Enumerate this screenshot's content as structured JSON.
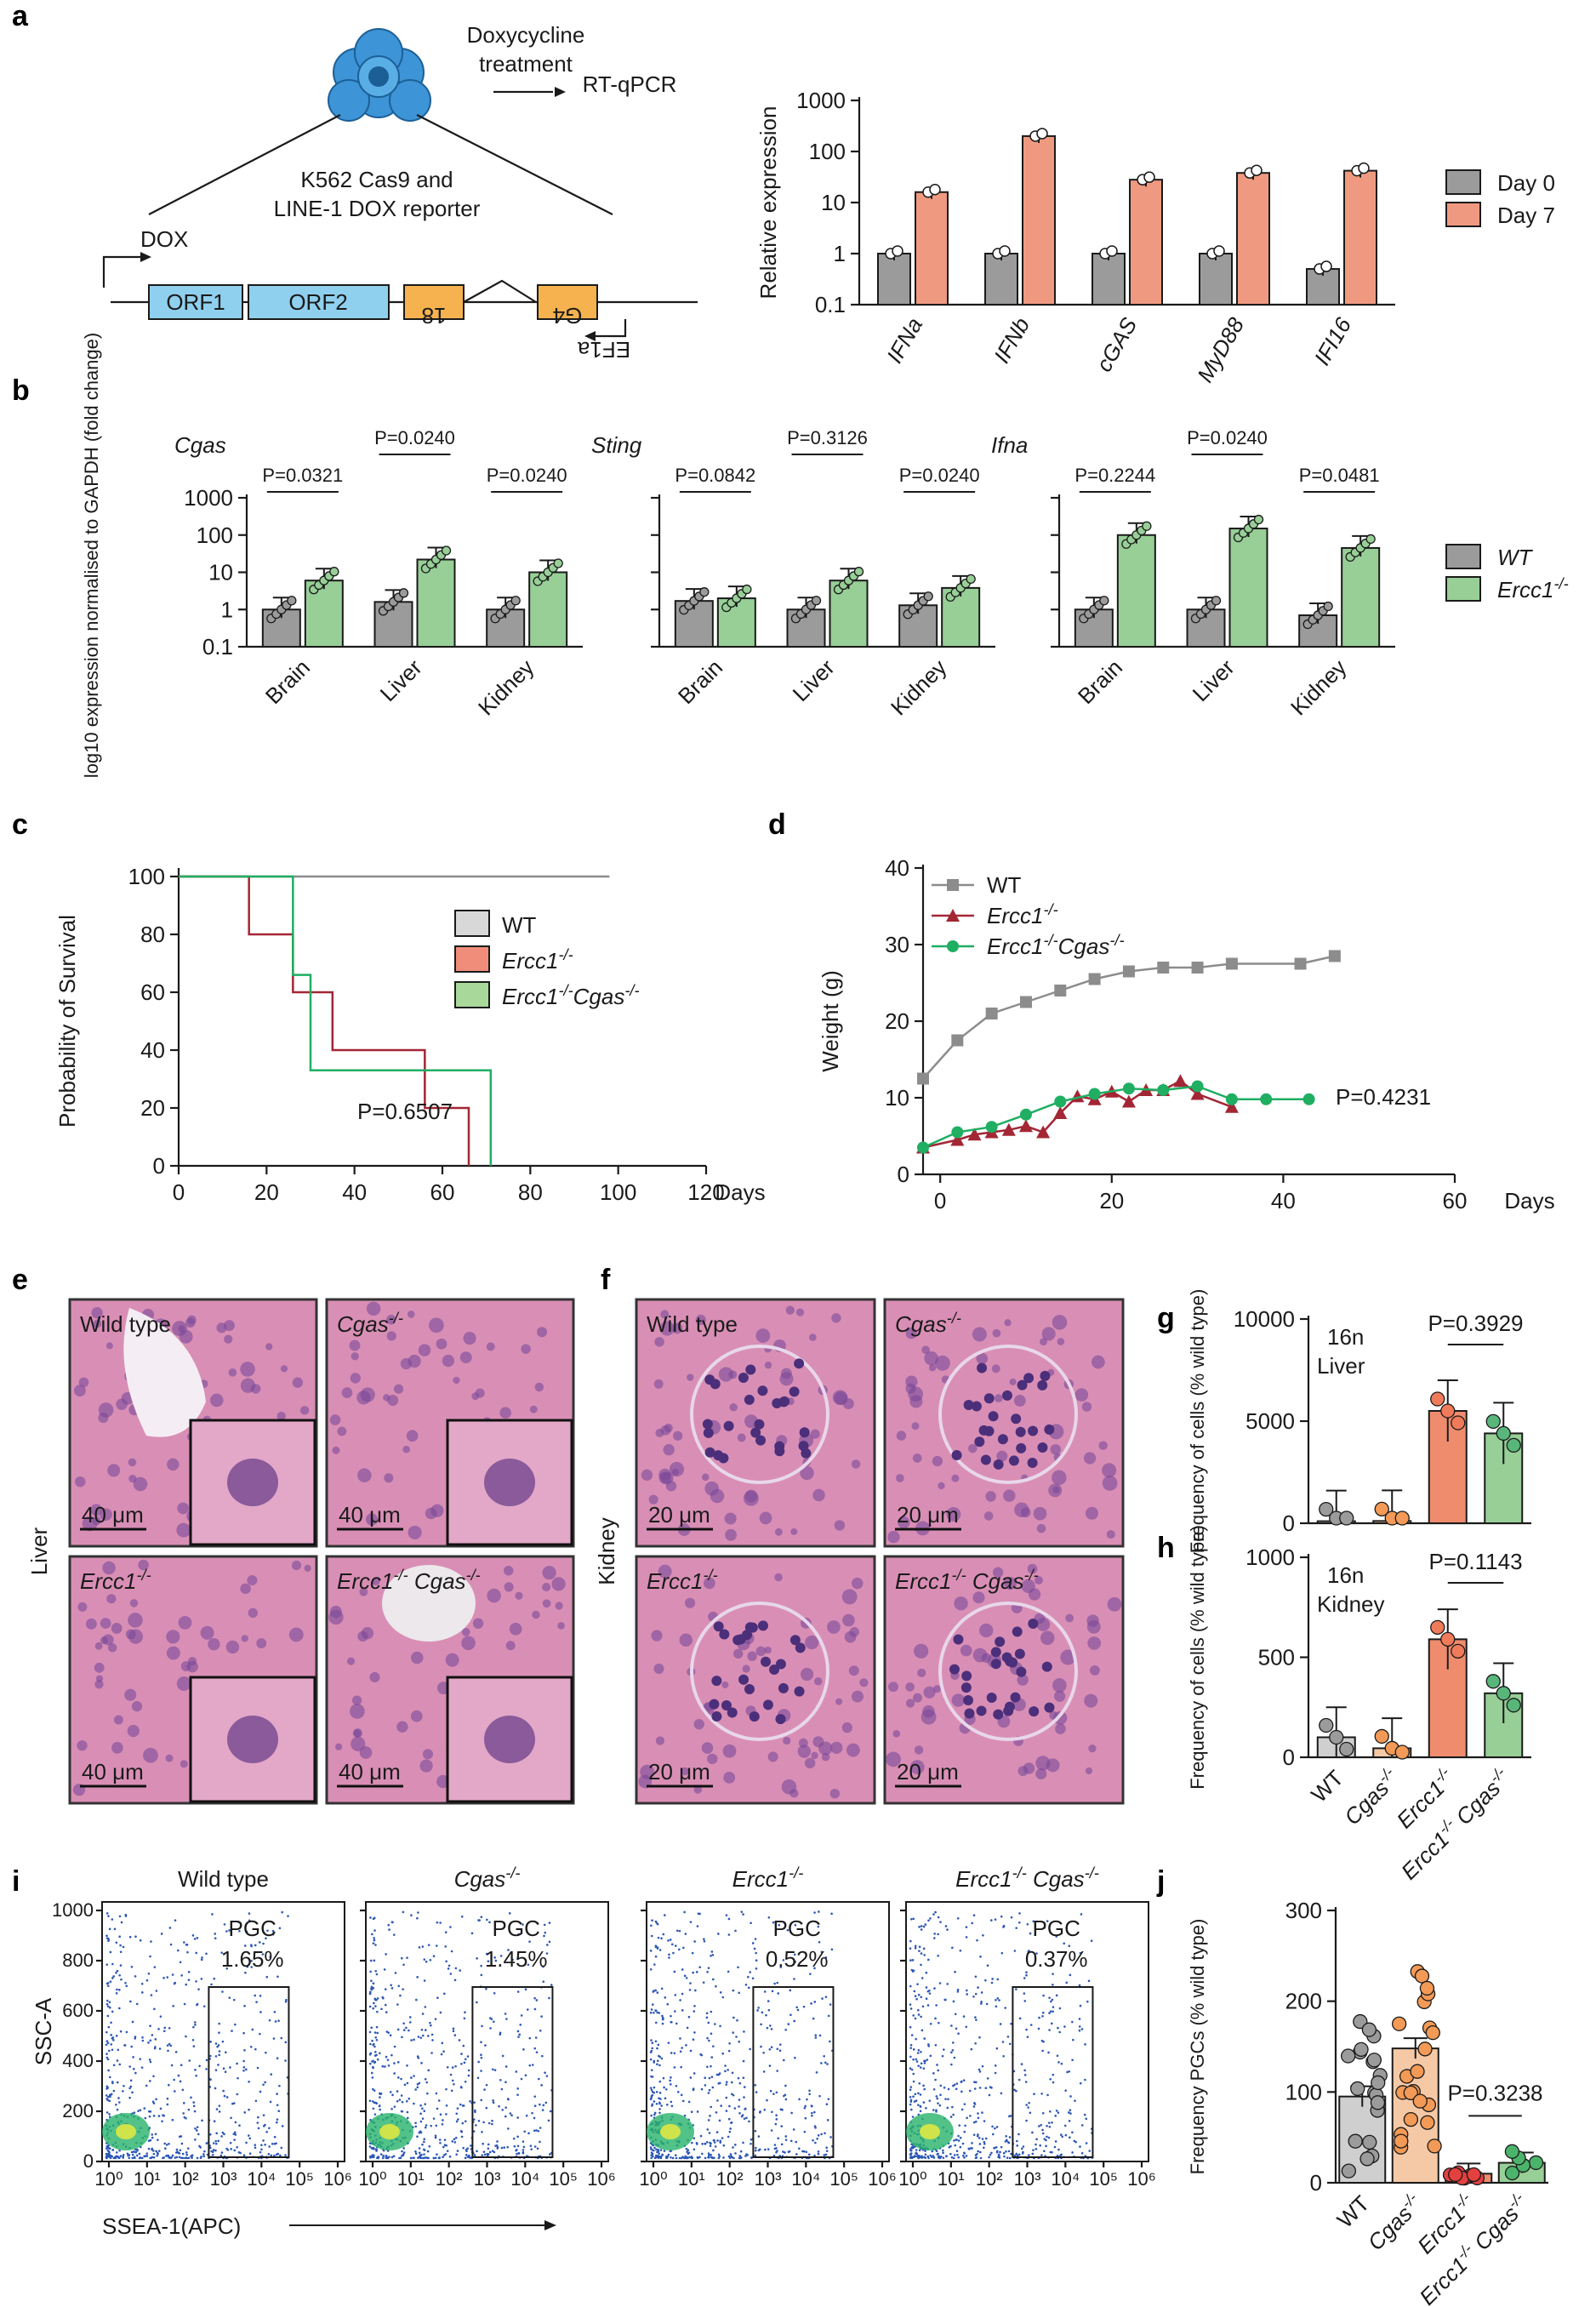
{
  "panel_letters": [
    "a",
    "b",
    "c",
    "d",
    "e",
    "f",
    "g",
    "h",
    "i",
    "j"
  ],
  "panel_a": {
    "diagram": {
      "cell_line": "K562 Cas9 and",
      "cell_line_2": "LINE-1 DOX reporter",
      "treatment_1": "Doxycycline",
      "treatment_2": "treatment",
      "readout": "RT-qPCR",
      "dox": "DOX",
      "orf1": "ORF1",
      "orf2": "ORF2",
      "box_left": "18",
      "box_right": "G4",
      "promoter": "EF1a"
    }
  },
  "panel_e": {
    "row_label": "Liver",
    "tiles": [
      {
        "title": "Wild type",
        "scale": "40 μm"
      },
      {
        "title": "Cgas-/-",
        "scale": "40 μm"
      },
      {
        "title": "Ercc1-/-",
        "scale": "40 μm"
      },
      {
        "title": "Ercc1-/- Cgas-/-",
        "scale": "40 μm"
      }
    ]
  },
  "panel_f": {
    "row_label": "Kidney",
    "tiles": [
      {
        "title": "Wild type",
        "scale": "20 μm"
      },
      {
        "title": "Cgas-/-",
        "scale": "20 μm"
      },
      {
        "title": "Ercc1-/-",
        "scale": "20 μm"
      },
      {
        "title": "Ercc1-/- Cgas-/-",
        "scale": "20 μm"
      }
    ]
  },
  "panel_i": {
    "ylabel": "SSC-A",
    "xlabel": "SSEA-1(APC)",
    "gate_label": "PGC",
    "y_ticks": [
      "0",
      "200",
      "400",
      "600",
      "800",
      "1000"
    ],
    "x_ticks": [
      "10⁰",
      "10¹",
      "10²",
      "10³",
      "10⁴",
      "10⁵",
      "10⁶"
    ],
    "plots": [
      {
        "title": "Wild type",
        "pct": "1.65%"
      },
      {
        "title": "Cgas-/-",
        "pct": "1.45%"
      },
      {
        "title": "Ercc1-/-",
        "pct": "0.52%"
      },
      {
        "title": "Ercc1-/- Cgas-/-",
        "pct": "0.37%"
      }
    ]
  },
  "colors": {
    "grey": "#9b9b9b",
    "salmon": "#ef9a80",
    "green": "#97cf97",
    "red_line": "#a32634",
    "green_line": "#1fae62",
    "grey_line": "#8c8c8c",
    "orange": "#f29a56",
    "red_dot": "#e34040",
    "cell_blue": "#3d94d6",
    "orf_blue": "#8fd0ee",
    "orange_box": "#f5b24e",
    "tissue": "#d98fb5"
  },
  "chart_data": [
    {
      "id": "a",
      "type": "bar",
      "yscale": "log",
      "ylabel": "Relative expression",
      "y_ticks": [
        "0.1",
        "1",
        "10",
        "100",
        "1000"
      ],
      "categories": [
        "IFNa",
        "IFNb",
        "cGAS",
        "MyD88",
        "IFI16"
      ],
      "series": [
        {
          "name": "Day 0",
          "values": [
            1,
            1,
            1,
            1,
            0.5
          ]
        },
        {
          "name": "Day 7",
          "values": [
            16,
            200,
            28,
            38,
            42
          ]
        }
      ]
    },
    {
      "id": "b",
      "type": "bar",
      "yscale": "log",
      "ylabel": "log10 expression normalised to GAPDH (fold change)",
      "y_ticks": [
        "0.1",
        "1",
        "10",
        "100",
        "1000"
      ],
      "legend": [
        "WT",
        "Ercc1-/-"
      ],
      "subplots": [
        {
          "gene": "Cgas",
          "categories": [
            "Brain",
            "Liver",
            "Kidney"
          ],
          "WT": [
            1.0,
            1.6,
            1.0
          ],
          "Ercc1": [
            6.0,
            22,
            10
          ],
          "p_values": [
            "P=0.0321",
            "P=0.0240",
            "P=0.0240"
          ]
        },
        {
          "gene": "Sting",
          "categories": [
            "Brain",
            "Liver",
            "Kidney"
          ],
          "WT": [
            1.7,
            1.0,
            1.3
          ],
          "Ercc1": [
            2.0,
            6.0,
            3.8
          ],
          "p_values": [
            "P=0.0842",
            "P=0.3126",
            "P=0.0240"
          ]
        },
        {
          "gene": "Ifna",
          "categories": [
            "Brain",
            "Liver",
            "Kidney"
          ],
          "WT": [
            1.0,
            1.0,
            0.7
          ],
          "Ercc1": [
            100,
            150,
            45
          ],
          "p_values": [
            "P=0.2244",
            "P=0.0240",
            "P=0.0481"
          ]
        }
      ]
    },
    {
      "id": "c",
      "type": "line",
      "subtype": "kaplan-meier",
      "ylabel": "Probability of Survival",
      "xlabel": "Days",
      "x_ticks": [
        "0",
        "20",
        "40",
        "60",
        "80",
        "100",
        "120"
      ],
      "y_ticks": [
        "0",
        "20",
        "40",
        "60",
        "80",
        "100"
      ],
      "xlim": [
        0,
        120
      ],
      "ylim": [
        0,
        100
      ],
      "annotation": "P=0.6507",
      "series": [
        {
          "name": "WT",
          "points": [
            [
              0,
              100
            ],
            [
              98,
              100
            ]
          ]
        },
        {
          "name": "Ercc1-/-",
          "points": [
            [
              0,
              100
            ],
            [
              16,
              100
            ],
            [
              16,
              80
            ],
            [
              26,
              80
            ],
            [
              26,
              60
            ],
            [
              31,
              60
            ],
            [
              31,
              60
            ],
            [
              35,
              60
            ],
            [
              35,
              40
            ],
            [
              56,
              40
            ],
            [
              56,
              20
            ],
            [
              66,
              20
            ],
            [
              66,
              0
            ]
          ]
        },
        {
          "name": "Ercc1-/-Cgas-/-",
          "points": [
            [
              0,
              100
            ],
            [
              26,
              100
            ],
            [
              26,
              66
            ],
            [
              30,
              66
            ],
            [
              30,
              33
            ],
            [
              71,
              33
            ],
            [
              71,
              0
            ]
          ]
        }
      ]
    },
    {
      "id": "d",
      "type": "line",
      "ylabel": "Weight (g)",
      "xlabel": "Days",
      "x_ticks": [
        "0",
        "20",
        "40",
        "60"
      ],
      "y_ticks": [
        "0",
        "10",
        "20",
        "30",
        "40"
      ],
      "xlim": [
        -2,
        60
      ],
      "ylim": [
        0,
        40
      ],
      "annotation": "P=0.4231",
      "series": [
        {
          "name": "WT",
          "x": [
            -2,
            2,
            6,
            10,
            14,
            18,
            22,
            26,
            30,
            34,
            42,
            46
          ],
          "y": [
            12.5,
            17.5,
            21,
            22.5,
            24,
            25.5,
            26.5,
            27,
            27,
            27.5,
            27.5,
            28.5
          ]
        },
        {
          "name": "Ercc1-/-",
          "x": [
            -2,
            2,
            4,
            6,
            8,
            10,
            12,
            14,
            16,
            18,
            20,
            22,
            24,
            26,
            28,
            30,
            34
          ],
          "y": [
            3.5,
            4.5,
            5.2,
            5.5,
            5.8,
            6.3,
            5.5,
            8,
            10.2,
            9.8,
            10.8,
            9.5,
            11,
            11,
            12.2,
            10.5,
            8.8
          ]
        },
        {
          "name": "Ercc1-/-Cgas-/-",
          "x": [
            -2,
            2,
            6,
            10,
            14,
            18,
            22,
            26,
            30,
            34,
            38,
            43
          ],
          "y": [
            3.5,
            5.5,
            6.2,
            7.8,
            9.5,
            10.5,
            11.2,
            11,
            11.5,
            9.8,
            9.8,
            9.8
          ]
        }
      ]
    },
    {
      "id": "g",
      "type": "bar",
      "ylabel": "Frequency of cells (% wild type)",
      "tag_1": "16n",
      "tag_2": "Liver",
      "y_ticks": [
        "0",
        "5000",
        "10000"
      ],
      "ylim": [
        0,
        10000
      ],
      "categories": [
        "WT",
        "Cgas-/-",
        "Ercc1-/-",
        "Ercc1-/- Cgas-/-"
      ],
      "values": [
        100,
        110,
        5500,
        4400
      ],
      "annotation": "P=0.3929"
    },
    {
      "id": "h",
      "type": "bar",
      "ylabel": "Frequency of cells (% wild type)",
      "tag_1": "16n",
      "tag_2": "Kidney",
      "y_ticks": [
        "0",
        "500",
        "1000"
      ],
      "ylim": [
        0,
        1000
      ],
      "categories": [
        "WT",
        "Cgas-/-",
        "Ercc1-/-",
        "Ercc1-/- Cgas-/-"
      ],
      "values": [
        100,
        45,
        590,
        320
      ],
      "annotation": "P=0.1143"
    },
    {
      "id": "j",
      "type": "bar",
      "ylabel": "Frequency PGCs (% wild type)",
      "y_ticks": [
        "0",
        "100",
        "200",
        "300"
      ],
      "ylim": [
        0,
        300
      ],
      "categories": [
        "WT",
        "Cgas-/-",
        "Ercc1-/-",
        "Ercc1-/- Cgas-/-"
      ],
      "values": [
        95,
        148,
        10,
        22
      ],
      "annotation": "P=0.3238"
    }
  ]
}
